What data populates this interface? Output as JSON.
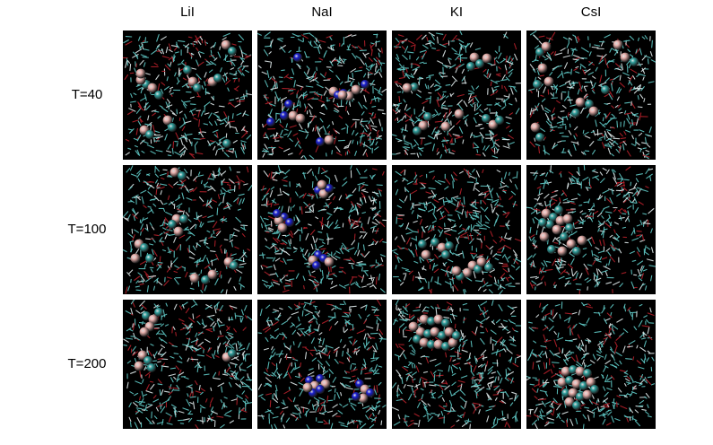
{
  "columns": [
    "LiI",
    "NaI",
    "KI",
    "CsI"
  ],
  "rows": [
    "T=40",
    "T=100",
    "T=200"
  ],
  "colors": {
    "background": "#000000",
    "water_cyan": "#5fc7c4",
    "water_red": "#b3202a",
    "water_white": "#dfe9ea",
    "iodide_pink": "#e9b1ad",
    "lithium_cyan": "#2e9e9b",
    "sodium_blue": "#1a1fd2",
    "potassium_cyan": "#2e9e9b",
    "cesium_cyan": "#2e9e9b"
  },
  "panels": [
    {
      "row": 0,
      "col": 0,
      "cation": "Li",
      "cation_color": "lithium_cyan",
      "pattern": "dispersed"
    },
    {
      "row": 0,
      "col": 1,
      "cation": "Na",
      "cation_color": "sodium_blue",
      "pattern": "dispersed"
    },
    {
      "row": 0,
      "col": 2,
      "cation": "K",
      "cation_color": "potassium_cyan",
      "pattern": "dispersed"
    },
    {
      "row": 0,
      "col": 3,
      "cation": "Cs",
      "cation_color": "cesium_cyan",
      "pattern": "dispersed"
    },
    {
      "row": 1,
      "col": 0,
      "cation": "Li",
      "cation_color": "lithium_cyan",
      "pattern": "small-clusters"
    },
    {
      "row": 1,
      "col": 1,
      "cation": "Na",
      "cation_color": "sodium_blue",
      "pattern": "small-clusters"
    },
    {
      "row": 1,
      "col": 2,
      "cation": "K",
      "cation_color": "potassium_cyan",
      "pattern": "chain"
    },
    {
      "row": 1,
      "col": 3,
      "cation": "Cs",
      "cation_color": "cesium_cyan",
      "pattern": "aggregate"
    },
    {
      "row": 2,
      "col": 0,
      "cation": "Li",
      "cation_color": "lithium_cyan",
      "pattern": "small-clusters"
    },
    {
      "row": 2,
      "col": 1,
      "cation": "Na",
      "cation_color": "sodium_blue",
      "pattern": "two-clusters"
    },
    {
      "row": 2,
      "col": 2,
      "cation": "K",
      "cation_color": "potassium_cyan",
      "pattern": "crystal"
    },
    {
      "row": 2,
      "col": 3,
      "cation": "Cs",
      "cation_color": "cesium_cyan",
      "pattern": "crystal"
    }
  ]
}
